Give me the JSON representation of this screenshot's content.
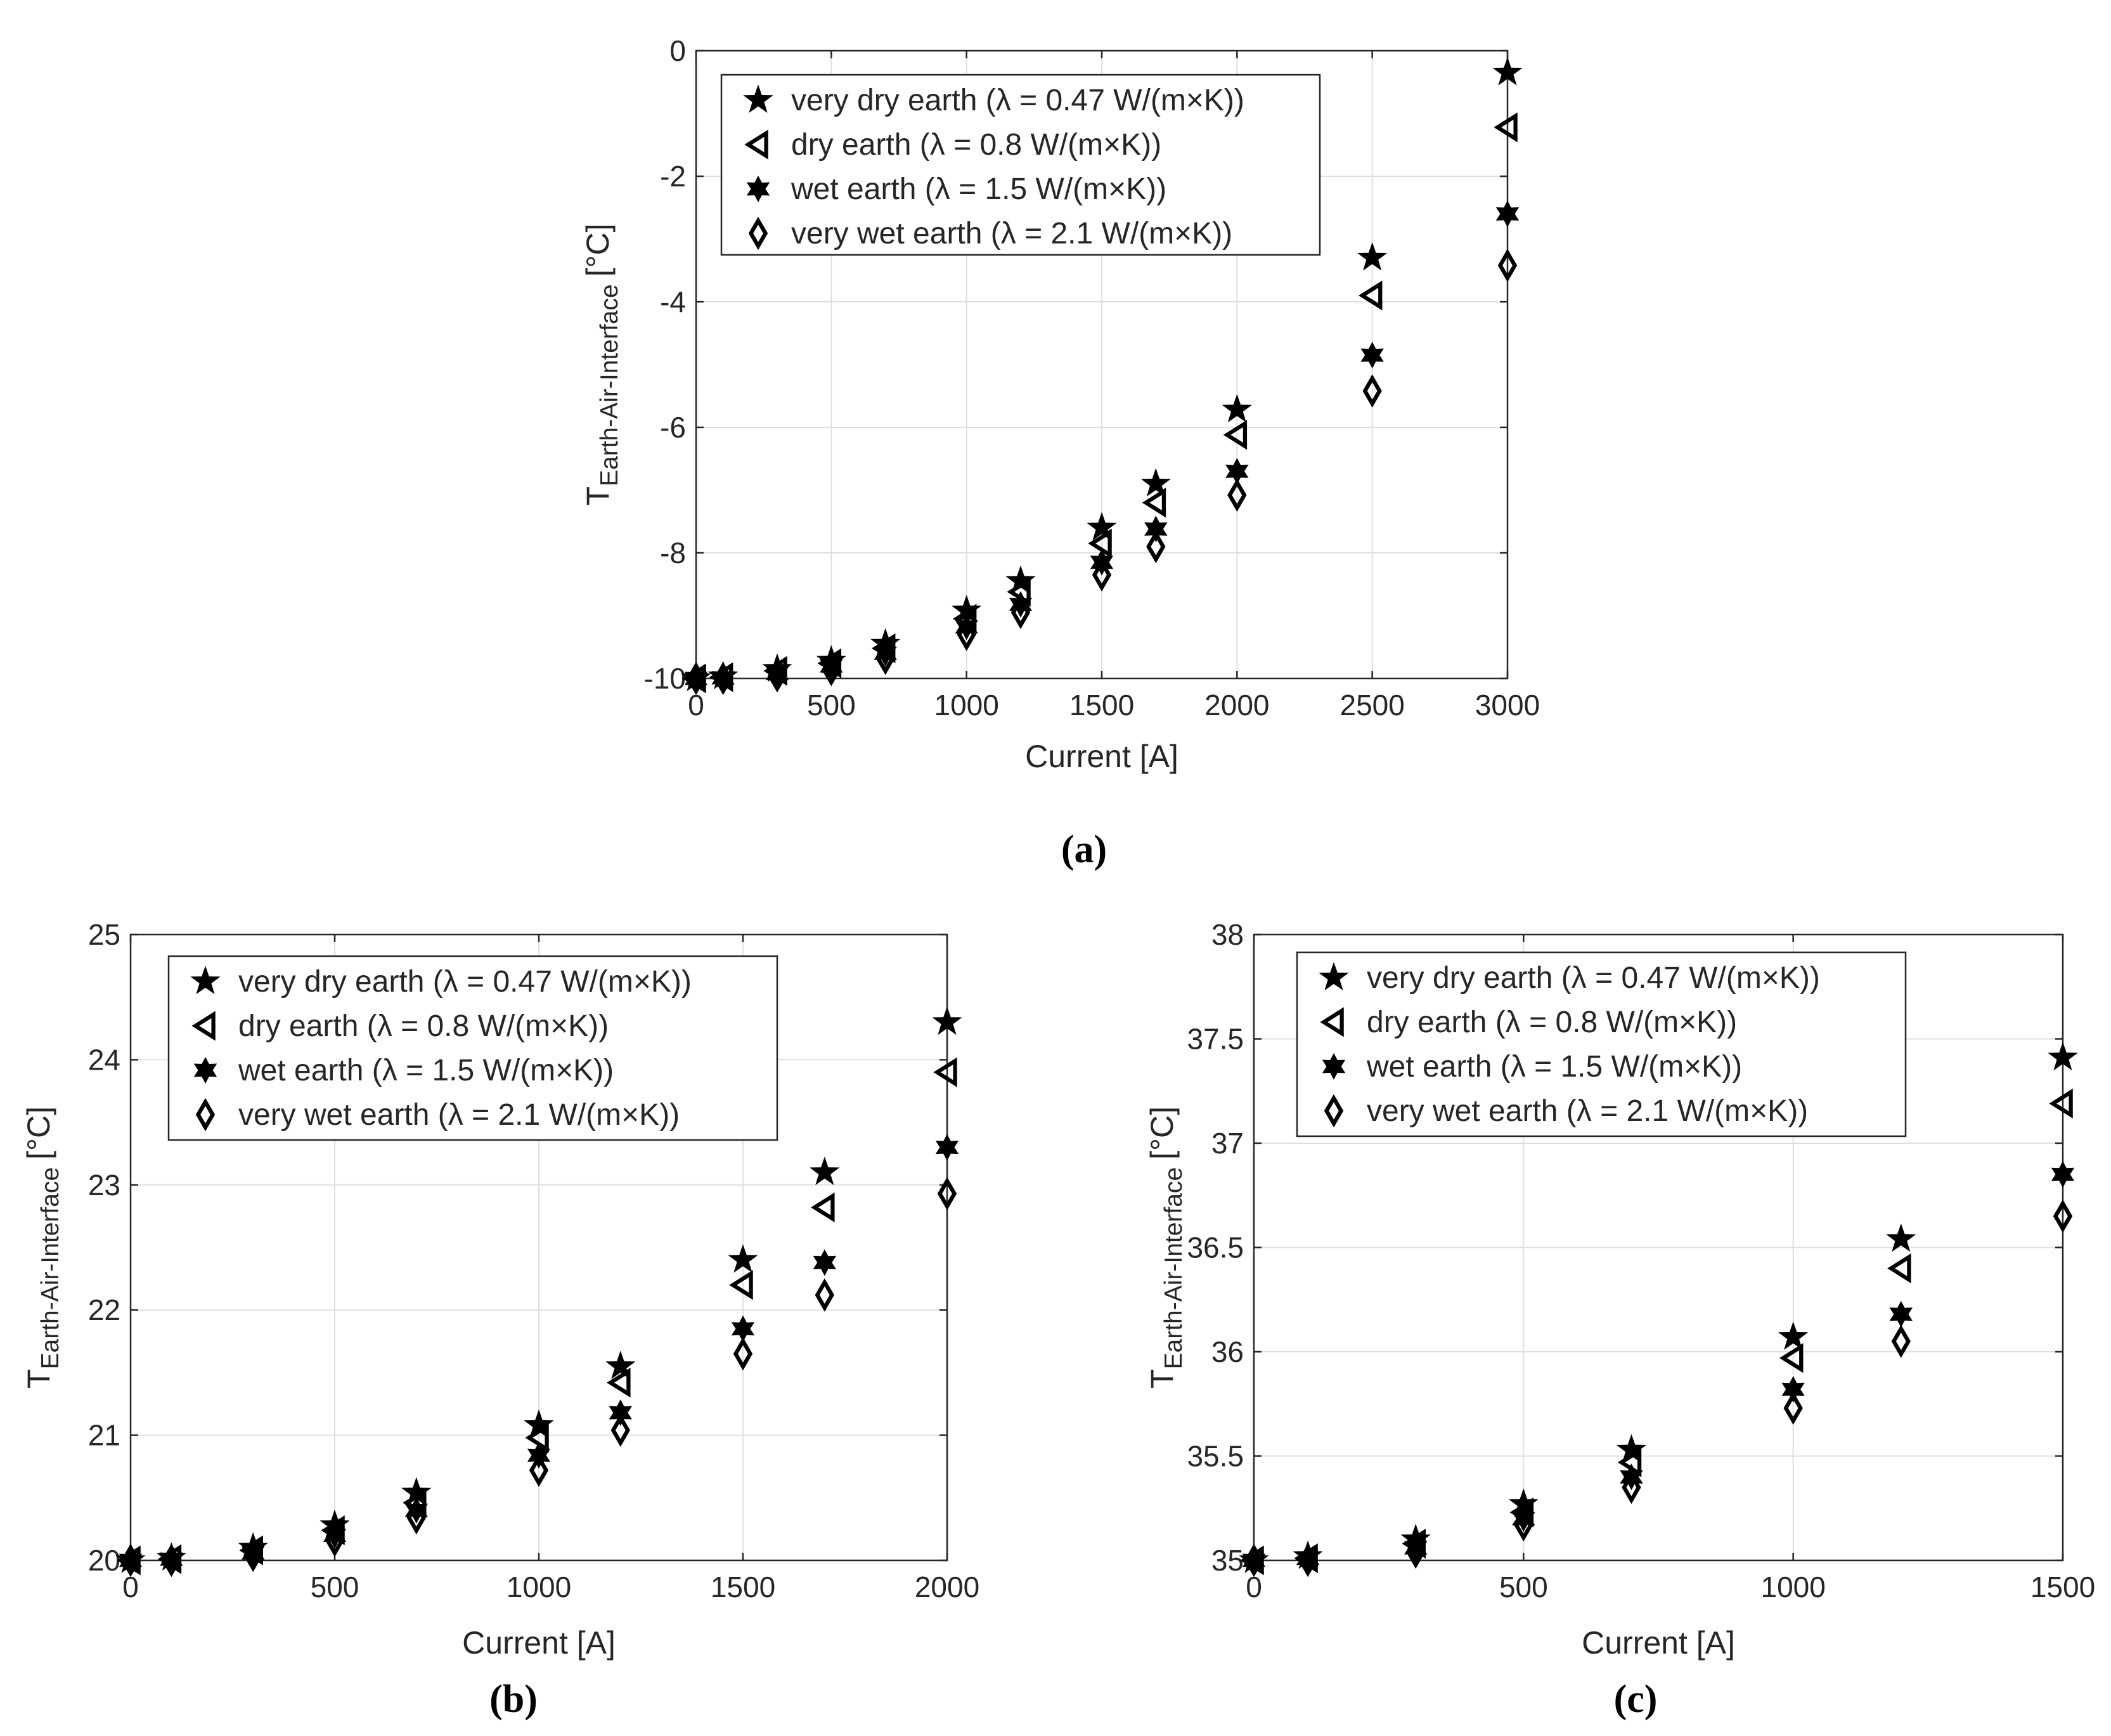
{
  "figure": {
    "panel_labels": [
      "(a)",
      "(b)",
      "(c)"
    ]
  },
  "legend_entries": [
    {
      "symbol": "star-5",
      "label": "very dry earth (λ = 0.47 W/(m×K))"
    },
    {
      "symbol": "triangle-left",
      "label": "dry earth (λ = 0.8 W/(m×K))"
    },
    {
      "symbol": "star-6",
      "label": "wet earth (λ = 1.5 W/(m×K))"
    },
    {
      "symbol": "diamond",
      "label": "very wet earth (λ = 2.1 W/(m×K))"
    }
  ],
  "chart_data": [
    {
      "panel": "(a)",
      "type": "scatter",
      "xlabel": "Current [A]",
      "ylabel": "T",
      "ylabel_subscript": "Earth-Air-Interface",
      "ylabel_unit": "[°C]",
      "xlim": [
        0,
        3000
      ],
      "ylim": [
        -10,
        0
      ],
      "xticks": [
        0,
        500,
        1000,
        1500,
        2000,
        2500,
        3000
      ],
      "yticks": [
        -10,
        -8,
        -6,
        -4,
        -2,
        0
      ],
      "grid": true,
      "legend_position": "top-left",
      "x": [
        0,
        100,
        300,
        500,
        700,
        1000,
        1200,
        1500,
        1700,
        2000,
        2500,
        3000
      ],
      "series": [
        {
          "name": "very dry earth (λ = 0.47 W/(m×K))",
          "marker": "star-5",
          "values": [
            -10,
            -9.97,
            -9.85,
            -9.72,
            -9.45,
            -8.92,
            -8.45,
            -7.6,
            -6.9,
            -5.72,
            -3.3,
            -0.35
          ]
        },
        {
          "name": "dry earth (λ = 0.8 W/(m×K))",
          "marker": "triangle-left",
          "values": [
            -10,
            -9.98,
            -9.88,
            -9.76,
            -9.52,
            -9.05,
            -8.62,
            -7.85,
            -7.2,
            -6.12,
            -3.9,
            -1.22
          ]
        },
        {
          "name": "wet earth (λ = 1.5 W/(m×K))",
          "marker": "star-6",
          "values": [
            -10,
            -9.99,
            -9.92,
            -9.8,
            -9.6,
            -9.18,
            -8.82,
            -8.15,
            -7.62,
            -6.7,
            -4.85,
            -2.6
          ]
        },
        {
          "name": "very wet earth (λ = 2.1 W/(m×K))",
          "marker": "diamond",
          "values": [
            -10,
            -10.0,
            -9.96,
            -9.86,
            -9.68,
            -9.3,
            -8.95,
            -8.35,
            -7.9,
            -7.08,
            -5.42,
            -3.42
          ]
        }
      ]
    },
    {
      "panel": "(b)",
      "type": "scatter",
      "xlabel": "Current [A]",
      "ylabel": "T",
      "ylabel_subscript": "Earth-Air-Interface",
      "ylabel_unit": "[°C]",
      "xlim": [
        0,
        2000
      ],
      "ylim": [
        20,
        25
      ],
      "xticks": [
        0,
        500,
        1000,
        1500,
        2000
      ],
      "yticks": [
        20,
        21,
        22,
        23,
        24,
        25
      ],
      "grid": true,
      "legend_position": "top-left",
      "x": [
        0,
        100,
        300,
        500,
        700,
        1000,
        1200,
        1500,
        1700,
        2000
      ],
      "series": [
        {
          "name": "very dry earth (λ = 0.47 W/(m×K))",
          "marker": "star-5",
          "values": [
            20.0,
            20.02,
            20.1,
            20.28,
            20.54,
            21.08,
            21.55,
            22.4,
            23.1,
            24.3
          ]
        },
        {
          "name": "dry earth (λ = 0.8 W/(m×K))",
          "marker": "triangle-left",
          "values": [
            20.0,
            20.01,
            20.08,
            20.24,
            20.46,
            20.98,
            21.42,
            22.2,
            22.82,
            23.9
          ]
        },
        {
          "name": "wet earth (λ = 1.5 W/(m×K))",
          "marker": "star-6",
          "values": [
            20.0,
            20.01,
            20.06,
            20.2,
            20.4,
            20.84,
            21.18,
            21.85,
            22.38,
            23.3
          ]
        },
        {
          "name": "very wet earth (λ = 2.1 W/(m×K))",
          "marker": "diamond",
          "values": [
            20.0,
            20.0,
            20.04,
            20.16,
            20.34,
            20.72,
            21.04,
            21.65,
            22.12,
            22.93
          ]
        }
      ]
    },
    {
      "panel": "(c)",
      "type": "scatter",
      "xlabel": "Current [A]",
      "ylabel": "T",
      "ylabel_subscript": "Earth-Air-Interface",
      "ylabel_unit": "[°C]",
      "xlim": [
        0,
        1500
      ],
      "ylim": [
        35,
        38
      ],
      "xticks": [
        0,
        500,
        1000,
        1500
      ],
      "yticks": [
        35,
        35.5,
        36,
        36.5,
        37,
        37.5,
        38
      ],
      "grid": true,
      "legend_position": "top-left",
      "x": [
        0,
        100,
        300,
        500,
        700,
        1000,
        1200,
        1500
      ],
      "series": [
        {
          "name": "very dry earth (λ = 0.47 W/(m×K))",
          "marker": "star-5",
          "values": [
            35.0,
            35.02,
            35.1,
            35.27,
            35.53,
            36.07,
            36.54,
            37.41
          ]
        },
        {
          "name": "dry earth (λ = 0.8 W/(m×K))",
          "marker": "triangle-left",
          "values": [
            35.0,
            35.01,
            35.08,
            35.23,
            35.47,
            35.97,
            36.4,
            37.19
          ]
        },
        {
          "name": "wet earth (λ = 1.5 W/(m×K))",
          "marker": "star-6",
          "values": [
            35.0,
            35.01,
            35.06,
            35.2,
            35.4,
            35.82,
            36.18,
            36.85
          ]
        },
        {
          "name": "very wet earth (λ = 2.1 W/(m×K))",
          "marker": "diamond",
          "values": [
            35.0,
            35.0,
            35.04,
            35.17,
            35.35,
            35.73,
            36.05,
            36.65
          ]
        }
      ]
    }
  ]
}
